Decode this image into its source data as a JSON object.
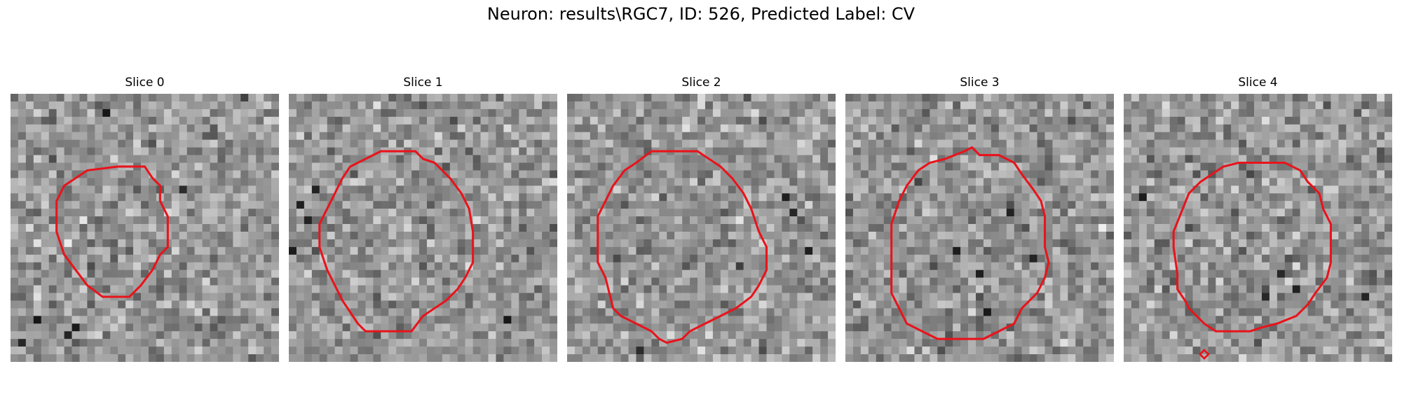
{
  "figure": {
    "title": "Neuron: results\\RGC7, ID: 526, Predicted Label: CV",
    "contour_color": "#e8141c",
    "colormap": "gray"
  },
  "panels": [
    {
      "title": "Slice 0",
      "seed": 11,
      "contour": [
        [
          14,
          9.5
        ],
        [
          17.5,
          9.5
        ],
        [
          18.5,
          11
        ],
        [
          19.5,
          12
        ],
        [
          19.5,
          14
        ],
        [
          20.5,
          16
        ],
        [
          20.5,
          18
        ],
        [
          20.5,
          20
        ],
        [
          19.5,
          21
        ],
        [
          18.5,
          23
        ],
        [
          17,
          25
        ],
        [
          15.5,
          26.5
        ],
        [
          12,
          26.5
        ],
        [
          10,
          25
        ],
        [
          8.5,
          23
        ],
        [
          7,
          21
        ],
        [
          6,
          18
        ],
        [
          6,
          14
        ],
        [
          7,
          12
        ],
        [
          8.5,
          11
        ],
        [
          10,
          10
        ]
      ],
      "dots": [
        [
          7,
          31
        ],
        [
          8,
          30
        ],
        [
          1,
          32
        ],
        [
          3,
          29
        ],
        [
          12,
          2
        ],
        [
          22,
          12
        ]
      ]
    },
    {
      "title": "Slice 1",
      "seed": 23,
      "contour": [
        [
          12,
          7.5
        ],
        [
          16.5,
          7.5
        ],
        [
          17.5,
          8.5
        ],
        [
          19,
          9
        ],
        [
          20,
          10
        ],
        [
          21,
          11
        ],
        [
          22.5,
          13
        ],
        [
          23.5,
          15
        ],
        [
          24,
          18
        ],
        [
          24,
          22
        ],
        [
          23,
          24
        ],
        [
          22,
          25.5
        ],
        [
          20.5,
          27
        ],
        [
          19,
          28
        ],
        [
          17.5,
          29
        ],
        [
          16,
          31
        ],
        [
          10,
          31
        ],
        [
          9,
          30
        ],
        [
          8,
          28.5
        ],
        [
          7,
          27
        ],
        [
          6,
          25
        ],
        [
          5,
          23
        ],
        [
          4,
          20
        ],
        [
          4,
          17
        ],
        [
          5,
          15
        ],
        [
          6,
          13
        ],
        [
          7,
          11
        ],
        [
          8,
          9.5
        ],
        [
          10,
          8.5
        ]
      ],
      "dots": [
        [
          1,
          14
        ],
        [
          2,
          16
        ],
        [
          3,
          12
        ],
        [
          0,
          20
        ],
        [
          28,
          29
        ]
      ]
    },
    {
      "title": "Slice 2",
      "seed": 37,
      "contour": [
        [
          11,
          7.5
        ],
        [
          17,
          7.5
        ],
        [
          18.5,
          8.5
        ],
        [
          20,
          9.5
        ],
        [
          21.5,
          11
        ],
        [
          23,
          13
        ],
        [
          24,
          15
        ],
        [
          25,
          18
        ],
        [
          26,
          20
        ],
        [
          26,
          23
        ],
        [
          25,
          25
        ],
        [
          24,
          26.5
        ],
        [
          22,
          28
        ],
        [
          20,
          29
        ],
        [
          18,
          30
        ],
        [
          16,
          31
        ],
        [
          15,
          32
        ],
        [
          13,
          32.5
        ],
        [
          12,
          32
        ],
        [
          11,
          31
        ],
        [
          9,
          30
        ],
        [
          7,
          29
        ],
        [
          6,
          28
        ],
        [
          5.5,
          26
        ],
        [
          5,
          24
        ],
        [
          4,
          22
        ],
        [
          4,
          18
        ],
        [
          4,
          16
        ],
        [
          5,
          14
        ],
        [
          6,
          12
        ],
        [
          7.5,
          10
        ],
        [
          9,
          9
        ]
      ],
      "dots": [
        [
          28,
          13
        ],
        [
          29,
          15
        ],
        [
          9,
          33
        ],
        [
          31,
          20
        ]
      ]
    },
    {
      "title": "Slice 3",
      "seed": 53,
      "contour": [
        [
          15.5,
          7.5
        ],
        [
          16.5,
          7
        ],
        [
          17.5,
          8
        ],
        [
          20,
          8
        ],
        [
          22,
          9
        ],
        [
          23,
          10.5
        ],
        [
          24.5,
          12.5
        ],
        [
          25.5,
          14
        ],
        [
          26,
          16
        ],
        [
          26,
          20
        ],
        [
          26.5,
          22
        ],
        [
          26,
          24
        ],
        [
          25,
          26
        ],
        [
          24,
          27
        ],
        [
          23,
          28
        ],
        [
          22,
          30
        ],
        [
          20,
          31
        ],
        [
          18,
          32
        ],
        [
          12,
          32
        ],
        [
          10,
          31
        ],
        [
          8,
          30
        ],
        [
          7,
          28
        ],
        [
          6,
          26
        ],
        [
          6,
          22
        ],
        [
          6,
          17
        ],
        [
          7,
          14
        ],
        [
          8,
          12
        ],
        [
          9.5,
          10
        ],
        [
          11,
          9
        ],
        [
          13,
          8.5
        ]
      ],
      "dots": [
        [
          18,
          28
        ],
        [
          17,
          23
        ],
        [
          24,
          21
        ],
        [
          21,
          15
        ],
        [
          14,
          20
        ]
      ]
    },
    {
      "title": "Slice 4",
      "seed": 71,
      "contour": [
        [
          13,
          9.5
        ],
        [
          15,
          9
        ],
        [
          21,
          9
        ],
        [
          23,
          10
        ],
        [
          24,
          11.5
        ],
        [
          25.5,
          13
        ],
        [
          26,
          15
        ],
        [
          27,
          17
        ],
        [
          27,
          22
        ],
        [
          26.5,
          24
        ],
        [
          25,
          26
        ],
        [
          24,
          27.5
        ],
        [
          22.5,
          29
        ],
        [
          20,
          30
        ],
        [
          18,
          30.5
        ],
        [
          16.5,
          31
        ],
        [
          12,
          31
        ],
        [
          10.5,
          30
        ],
        [
          9.5,
          29
        ],
        [
          8.5,
          28
        ],
        [
          8,
          27
        ],
        [
          7,
          25.5
        ],
        [
          7,
          23.5
        ],
        [
          6.5,
          20
        ],
        [
          6.5,
          18
        ],
        [
          7.5,
          15.5
        ],
        [
          8.5,
          13
        ],
        [
          10,
          11.5
        ],
        [
          11.5,
          10.5
        ]
      ],
      "dots": [
        [
          22,
          25
        ],
        [
          18,
          26
        ],
        [
          20,
          23
        ],
        [
          2,
          13
        ],
        [
          31,
          26
        ]
      ],
      "marker": [
        10.5,
        34
      ]
    }
  ]
}
